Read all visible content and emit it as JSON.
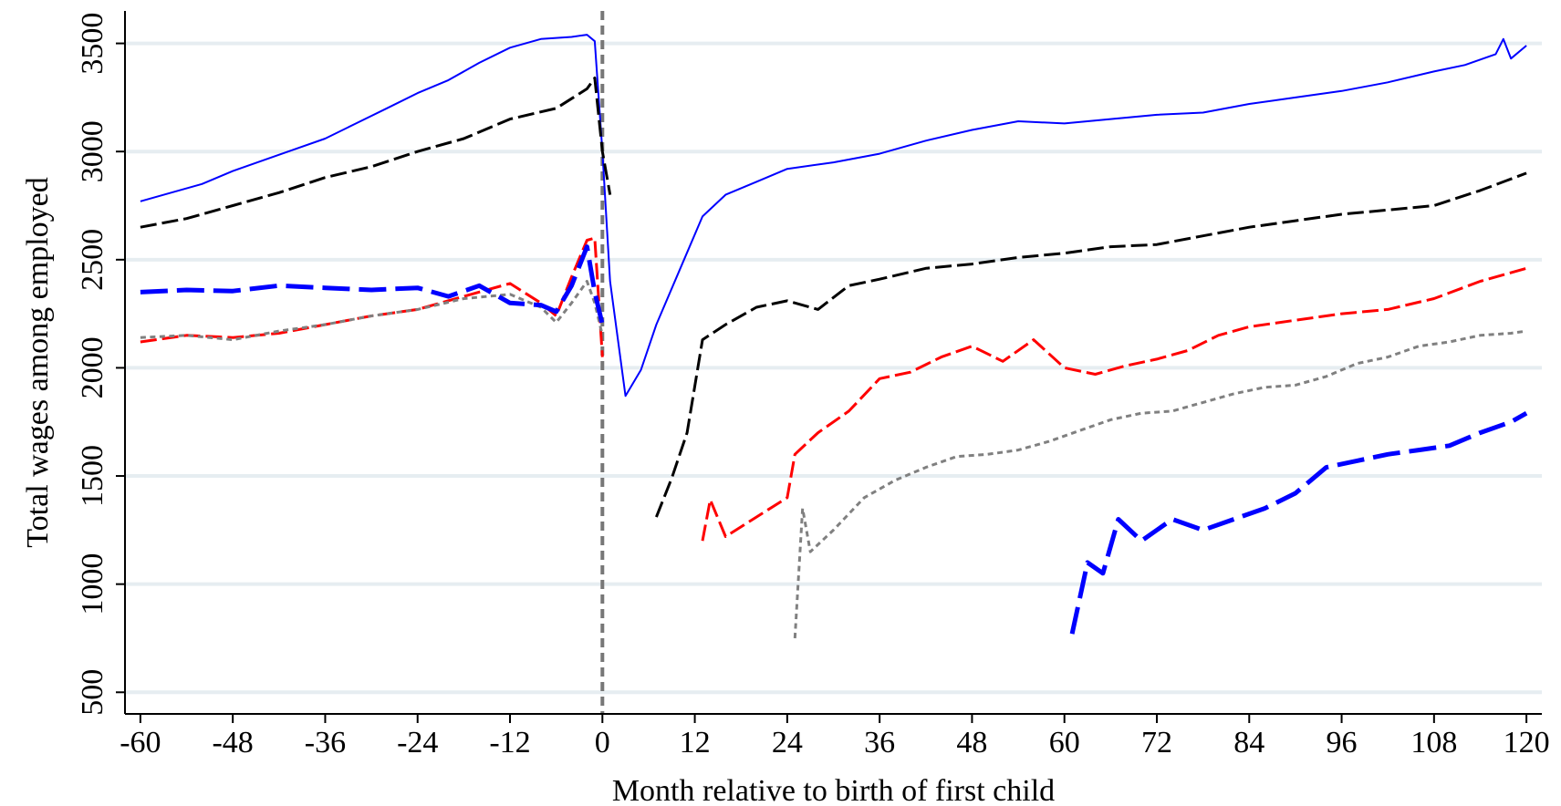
{
  "chart_data": {
    "type": "line",
    "title": "",
    "xlabel": "Month relative to birth of first child",
    "ylabel": "Total wages among employed",
    "xlim": [
      -62,
      122
    ],
    "ylim": [
      400,
      3650
    ],
    "xticks": [
      -60,
      -48,
      -36,
      -24,
      -12,
      0,
      12,
      24,
      36,
      48,
      60,
      72,
      84,
      96,
      108,
      120
    ],
    "yticks": [
      500,
      1000,
      1500,
      2000,
      2500,
      3000,
      3500
    ],
    "grid": "horizontal",
    "reference_line": {
      "x": 0,
      "style": "dashed",
      "color": "#777777"
    },
    "series": [
      {
        "color": "#0000ff",
        "style": "solid",
        "width": 2,
        "points": [
          [
            -60,
            2770
          ],
          [
            -56,
            2810
          ],
          [
            -52,
            2850
          ],
          [
            -48,
            2910
          ],
          [
            -44,
            2960
          ],
          [
            -40,
            3010
          ],
          [
            -36,
            3060
          ],
          [
            -32,
            3130
          ],
          [
            -28,
            3200
          ],
          [
            -24,
            3270
          ],
          [
            -20,
            3330
          ],
          [
            -16,
            3410
          ],
          [
            -12,
            3480
          ],
          [
            -8,
            3520
          ],
          [
            -4,
            3530
          ],
          [
            -2,
            3540
          ],
          [
            -1,
            3510
          ],
          [
            0,
            3000
          ],
          [
            1,
            2400
          ],
          [
            3,
            1870
          ],
          [
            5,
            1990
          ],
          [
            7,
            2200
          ],
          [
            10,
            2450
          ],
          [
            13,
            2700
          ],
          [
            16,
            2800
          ],
          [
            20,
            2860
          ],
          [
            24,
            2920
          ],
          [
            30,
            2950
          ],
          [
            36,
            2990
          ],
          [
            42,
            3050
          ],
          [
            48,
            3100
          ],
          [
            54,
            3140
          ],
          [
            60,
            3130
          ],
          [
            66,
            3150
          ],
          [
            72,
            3170
          ],
          [
            78,
            3180
          ],
          [
            84,
            3220
          ],
          [
            90,
            3250
          ],
          [
            96,
            3280
          ],
          [
            102,
            3320
          ],
          [
            108,
            3370
          ],
          [
            112,
            3400
          ],
          [
            116,
            3450
          ],
          [
            117,
            3520
          ],
          [
            118,
            3430
          ],
          [
            120,
            3490
          ]
        ]
      },
      {
        "color": "#000000",
        "style": "dashed",
        "width": 3,
        "points": [
          [
            -60,
            2650
          ],
          [
            -54,
            2690
          ],
          [
            -48,
            2750
          ],
          [
            -42,
            2810
          ],
          [
            -36,
            2880
          ],
          [
            -30,
            2930
          ],
          [
            -24,
            3000
          ],
          [
            -18,
            3060
          ],
          [
            -12,
            3150
          ],
          [
            -6,
            3200
          ],
          [
            -2,
            3290
          ],
          [
            -1,
            3340
          ],
          [
            0,
            3000
          ],
          [
            1,
            2800
          ],
          null,
          [
            7,
            1310
          ],
          [
            9,
            1490
          ],
          [
            11,
            1700
          ],
          [
            13,
            2130
          ],
          [
            16,
            2200
          ],
          [
            20,
            2280
          ],
          [
            24,
            2310
          ],
          [
            28,
            2270
          ],
          [
            32,
            2380
          ],
          [
            36,
            2410
          ],
          [
            42,
            2460
          ],
          [
            48,
            2480
          ],
          [
            54,
            2510
          ],
          [
            60,
            2530
          ],
          [
            66,
            2560
          ],
          [
            72,
            2570
          ],
          [
            78,
            2610
          ],
          [
            84,
            2650
          ],
          [
            90,
            2680
          ],
          [
            96,
            2710
          ],
          [
            102,
            2730
          ],
          [
            108,
            2750
          ],
          [
            114,
            2820
          ],
          [
            120,
            2900
          ]
        ]
      },
      {
        "color": "#ff0000",
        "style": "dashed",
        "width": 3,
        "points": [
          [
            -60,
            2120
          ],
          [
            -54,
            2150
          ],
          [
            -48,
            2140
          ],
          [
            -42,
            2160
          ],
          [
            -36,
            2200
          ],
          [
            -30,
            2240
          ],
          [
            -24,
            2270
          ],
          [
            -18,
            2330
          ],
          [
            -12,
            2390
          ],
          [
            -8,
            2300
          ],
          [
            -6,
            2240
          ],
          [
            -4,
            2420
          ],
          [
            -2,
            2590
          ],
          [
            -1,
            2600
          ],
          [
            0,
            2050
          ],
          null,
          [
            13,
            1200
          ],
          [
            14,
            1390
          ],
          [
            16,
            1220
          ],
          [
            20,
            1310
          ],
          [
            24,
            1400
          ],
          [
            25,
            1600
          ],
          [
            28,
            1700
          ],
          [
            32,
            1800
          ],
          [
            36,
            1950
          ],
          [
            40,
            1980
          ],
          [
            44,
            2050
          ],
          [
            48,
            2100
          ],
          [
            52,
            2030
          ],
          [
            56,
            2130
          ],
          [
            60,
            2000
          ],
          [
            64,
            1970
          ],
          [
            68,
            2010
          ],
          [
            72,
            2040
          ],
          [
            76,
            2080
          ],
          [
            80,
            2150
          ],
          [
            84,
            2190
          ],
          [
            90,
            2220
          ],
          [
            96,
            2250
          ],
          [
            102,
            2270
          ],
          [
            108,
            2320
          ],
          [
            114,
            2400
          ],
          [
            120,
            2460
          ]
        ]
      },
      {
        "color": "#808080",
        "style": "dotted",
        "width": 3,
        "points": [
          [
            -60,
            2140
          ],
          [
            -54,
            2150
          ],
          [
            -48,
            2130
          ],
          [
            -42,
            2170
          ],
          [
            -36,
            2200
          ],
          [
            -30,
            2240
          ],
          [
            -24,
            2270
          ],
          [
            -18,
            2320
          ],
          [
            -12,
            2340
          ],
          [
            -8,
            2280
          ],
          [
            -6,
            2210
          ],
          [
            -4,
            2300
          ],
          [
            -2,
            2400
          ],
          [
            -1,
            2300
          ],
          [
            0,
            2150
          ],
          null,
          [
            25,
            750
          ],
          [
            26,
            1350
          ],
          [
            27,
            1150
          ],
          [
            30,
            1250
          ],
          [
            34,
            1400
          ],
          [
            38,
            1480
          ],
          [
            42,
            1540
          ],
          [
            46,
            1590
          ],
          [
            50,
            1600
          ],
          [
            54,
            1620
          ],
          [
            58,
            1660
          ],
          [
            62,
            1710
          ],
          [
            66,
            1760
          ],
          [
            70,
            1790
          ],
          [
            74,
            1800
          ],
          [
            78,
            1840
          ],
          [
            82,
            1880
          ],
          [
            86,
            1910
          ],
          [
            90,
            1920
          ],
          [
            94,
            1960
          ],
          [
            98,
            2020
          ],
          [
            102,
            2050
          ],
          [
            106,
            2100
          ],
          [
            110,
            2120
          ],
          [
            114,
            2150
          ],
          [
            118,
            2160
          ],
          [
            120,
            2170
          ]
        ]
      },
      {
        "color": "#0000ff",
        "style": "dashed",
        "width": 5,
        "points": [
          [
            -60,
            2350
          ],
          [
            -54,
            2360
          ],
          [
            -48,
            2355
          ],
          [
            -42,
            2380
          ],
          [
            -36,
            2370
          ],
          [
            -30,
            2360
          ],
          [
            -24,
            2370
          ],
          [
            -20,
            2330
          ],
          [
            -16,
            2380
          ],
          [
            -12,
            2300
          ],
          [
            -8,
            2290
          ],
          [
            -6,
            2260
          ],
          [
            -4,
            2380
          ],
          [
            -2,
            2560
          ],
          [
            -1,
            2350
          ],
          [
            0,
            2200
          ],
          null,
          [
            61,
            770
          ],
          [
            63,
            1100
          ],
          [
            65,
            1050
          ],
          [
            67,
            1300
          ],
          [
            70,
            1200
          ],
          [
            74,
            1300
          ],
          [
            78,
            1250
          ],
          [
            82,
            1300
          ],
          [
            86,
            1350
          ],
          [
            90,
            1420
          ],
          [
            94,
            1540
          ],
          [
            98,
            1570
          ],
          [
            102,
            1600
          ],
          [
            106,
            1620
          ],
          [
            110,
            1640
          ],
          [
            114,
            1700
          ],
          [
            118,
            1750
          ],
          [
            120,
            1790
          ]
        ]
      }
    ]
  }
}
